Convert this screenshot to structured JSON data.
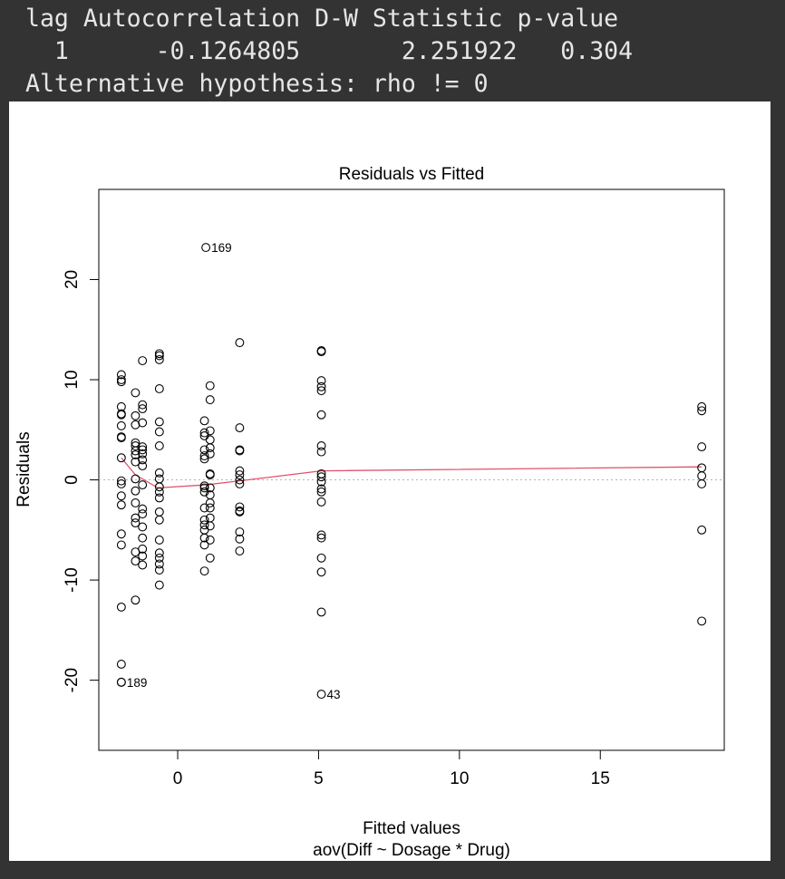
{
  "console": {
    "header_line": "lag Autocorrelation D-W Statistic p-value",
    "values_line": "  1      -0.1264805       2.251922   0.304",
    "alt_line": "Alternative hypothesis: rho != 0"
  },
  "chart_data": {
    "type": "scatter",
    "title": "Residuals vs Fitted",
    "xlabel": "Fitted values",
    "subtitle": "aov(Diff ~ Dosage * Drug)",
    "ylabel": "Residuals",
    "xlim": [
      -2.8,
      19.4
    ],
    "ylim": [
      -27,
      29
    ],
    "xticks": [
      0,
      5,
      10,
      15
    ],
    "yticks": [
      -20,
      -10,
      0,
      10,
      20
    ],
    "grid": false,
    "reference_line": {
      "y": 0,
      "style": "dotted",
      "color": "#b3b3b3"
    },
    "smooth_color": "#DF536B",
    "point_color": "#000000",
    "smooth_line": [
      [
        -2.0,
        2.2
      ],
      [
        -1.5,
        0.5
      ],
      [
        -0.7,
        -0.8
      ],
      [
        1.0,
        -0.5
      ],
      [
        2.2,
        -0.1
      ],
      [
        5.1,
        0.9
      ],
      [
        18.6,
        1.3
      ]
    ],
    "labeled_points": [
      {
        "x": 1.0,
        "y": 23.2,
        "label": "169"
      },
      {
        "x": -2.0,
        "y": -20.2,
        "label": "189"
      },
      {
        "x": 5.1,
        "y": -21.4,
        "label": "43"
      }
    ],
    "points": [
      [
        -2.0,
        10.5
      ],
      [
        -2.0,
        10.0
      ],
      [
        -2.0,
        9.8
      ],
      [
        -2.0,
        7.3
      ],
      [
        -2.0,
        6.6
      ],
      [
        -2.0,
        6.5
      ],
      [
        -2.0,
        5.4
      ],
      [
        -2.0,
        4.3
      ],
      [
        -2.0,
        4.2
      ],
      [
        -2.0,
        2.2
      ],
      [
        -2.0,
        -0.1
      ],
      [
        -2.0,
        -0.4
      ],
      [
        -2.0,
        -1.6
      ],
      [
        -2.0,
        -2.5
      ],
      [
        -2.0,
        -5.4
      ],
      [
        -2.0,
        -6.5
      ],
      [
        -2.0,
        -12.7
      ],
      [
        -2.0,
        -18.4
      ],
      [
        -2.0,
        -20.2
      ],
      [
        -1.5,
        8.7
      ],
      [
        -1.5,
        6.4
      ],
      [
        -1.5,
        5.5
      ],
      [
        -1.5,
        3.7
      ],
      [
        -1.5,
        3.4
      ],
      [
        -1.5,
        2.9
      ],
      [
        -1.5,
        2.5
      ],
      [
        -1.5,
        1.8
      ],
      [
        -1.5,
        0.1
      ],
      [
        -1.5,
        -1.1
      ],
      [
        -1.5,
        -2.3
      ],
      [
        -1.5,
        -3.8
      ],
      [
        -1.5,
        -4.3
      ],
      [
        -1.5,
        -7.2
      ],
      [
        -1.5,
        -8.1
      ],
      [
        -1.5,
        -12.0
      ],
      [
        -1.25,
        11.9
      ],
      [
        -1.25,
        7.5
      ],
      [
        -1.25,
        7.1
      ],
      [
        -1.25,
        5.7
      ],
      [
        -1.25,
        3.3
      ],
      [
        -1.25,
        3.0
      ],
      [
        -1.25,
        2.6
      ],
      [
        -1.25,
        2.0
      ],
      [
        -1.25,
        1.4
      ],
      [
        -1.25,
        -0.5
      ],
      [
        -1.25,
        -2.9
      ],
      [
        -1.25,
        -3.4
      ],
      [
        -1.25,
        -4.7
      ],
      [
        -1.25,
        -5.8
      ],
      [
        -1.25,
        -6.9
      ],
      [
        -1.25,
        -7.6
      ],
      [
        -1.25,
        -8.5
      ],
      [
        -0.65,
        12.6
      ],
      [
        -0.65,
        12.4
      ],
      [
        -0.65,
        12.0
      ],
      [
        -0.65,
        9.1
      ],
      [
        -0.65,
        5.8
      ],
      [
        -0.65,
        4.8
      ],
      [
        -0.65,
        3.4
      ],
      [
        -0.65,
        0.7
      ],
      [
        -0.65,
        0.1
      ],
      [
        -0.65,
        -0.7
      ],
      [
        -0.65,
        -1.2
      ],
      [
        -0.65,
        -1.8
      ],
      [
        -0.65,
        -3.2
      ],
      [
        -0.65,
        -4.0
      ],
      [
        -0.65,
        -6.0
      ],
      [
        -0.65,
        -7.3
      ],
      [
        -0.65,
        -7.8
      ],
      [
        -0.65,
        -8.4
      ],
      [
        -0.65,
        -9.0
      ],
      [
        -0.65,
        -10.5
      ],
      [
        0.95,
        5.9
      ],
      [
        0.95,
        4.7
      ],
      [
        0.95,
        4.4
      ],
      [
        0.95,
        3.0
      ],
      [
        0.95,
        2.4
      ],
      [
        0.95,
        2.1
      ],
      [
        0.95,
        -0.6
      ],
      [
        0.95,
        -0.8
      ],
      [
        0.95,
        -1.2
      ],
      [
        0.95,
        -2.8
      ],
      [
        0.95,
        -4.0
      ],
      [
        0.95,
        -4.5
      ],
      [
        0.95,
        -5.0
      ],
      [
        0.95,
        -5.8
      ],
      [
        0.95,
        -6.5
      ],
      [
        0.95,
        -9.1
      ],
      [
        1.15,
        9.4
      ],
      [
        1.15,
        8.0
      ],
      [
        1.15,
        4.9
      ],
      [
        1.15,
        4.0
      ],
      [
        1.15,
        3.2
      ],
      [
        1.15,
        2.6
      ],
      [
        1.15,
        0.6
      ],
      [
        1.15,
        0.5
      ],
      [
        1.15,
        -0.8
      ],
      [
        1.15,
        -1.5
      ],
      [
        1.15,
        -2.3
      ],
      [
        1.15,
        -2.8
      ],
      [
        1.15,
        -3.8
      ],
      [
        1.15,
        -4.6
      ],
      [
        1.15,
        -6.0
      ],
      [
        1.15,
        -7.8
      ],
      [
        2.2,
        13.7
      ],
      [
        2.2,
        5.2
      ],
      [
        2.2,
        3.0
      ],
      [
        2.2,
        2.9
      ],
      [
        2.2,
        0.9
      ],
      [
        2.2,
        0.5
      ],
      [
        2.2,
        0.0
      ],
      [
        2.2,
        -0.4
      ],
      [
        2.2,
        -2.7
      ],
      [
        2.2,
        -3.1
      ],
      [
        2.2,
        -3.2
      ],
      [
        2.2,
        -5.2
      ],
      [
        2.2,
        -5.9
      ],
      [
        2.2,
        -7.1
      ],
      [
        5.1,
        12.9
      ],
      [
        5.1,
        12.8
      ],
      [
        5.1,
        9.9
      ],
      [
        5.1,
        9.3
      ],
      [
        5.1,
        8.9
      ],
      [
        5.1,
        6.5
      ],
      [
        5.1,
        3.4
      ],
      [
        5.1,
        2.8
      ],
      [
        5.1,
        0.6
      ],
      [
        5.1,
        0.3
      ],
      [
        5.1,
        -0.2
      ],
      [
        5.1,
        -0.9
      ],
      [
        5.1,
        -1.2
      ],
      [
        5.1,
        -2.2
      ],
      [
        5.1,
        -5.5
      ],
      [
        5.1,
        -5.8
      ],
      [
        5.1,
        -7.8
      ],
      [
        5.1,
        -9.2
      ],
      [
        5.1,
        -13.2
      ],
      [
        18.6,
        7.3
      ],
      [
        18.6,
        6.9
      ],
      [
        18.6,
        3.3
      ],
      [
        18.6,
        1.2
      ],
      [
        18.6,
        0.4
      ],
      [
        18.6,
        -0.4
      ],
      [
        18.6,
        -5.0
      ],
      [
        18.6,
        -14.1
      ]
    ]
  }
}
